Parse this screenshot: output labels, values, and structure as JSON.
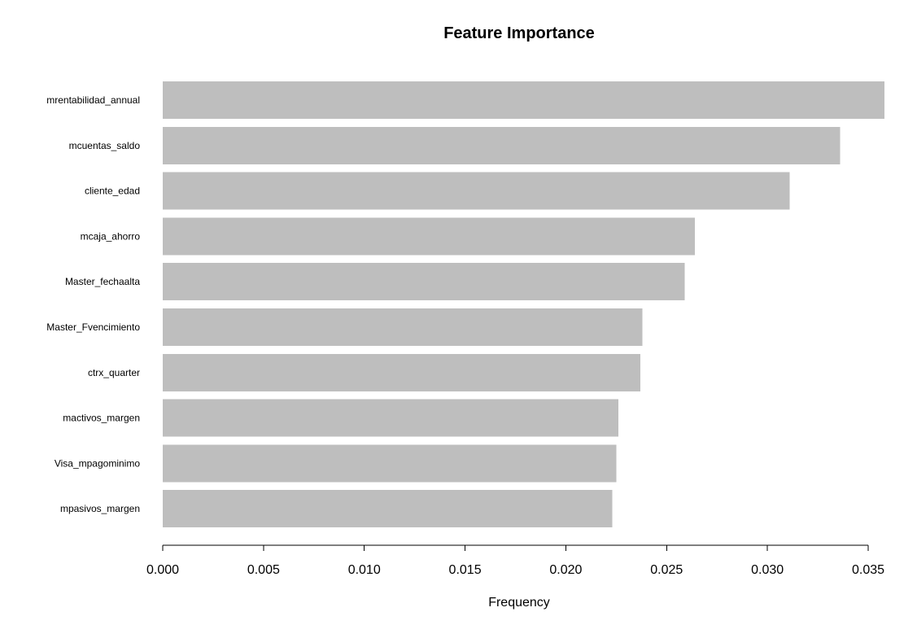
{
  "chart_data": {
    "type": "bar",
    "orientation": "horizontal",
    "title": "Feature Importance",
    "xlabel": "Frequency",
    "ylabel": "",
    "categories": [
      "mrentabilidad_annual",
      "mcuentas_saldo",
      "cliente_edad",
      "mcaja_ahorro",
      "Master_fechaalta",
      "Master_Fvencimiento",
      "ctrx_quarter",
      "mactivos_margen",
      "Visa_mpagominimo",
      "mpasivos_margen"
    ],
    "values": [
      0.0358,
      0.0336,
      0.0311,
      0.0264,
      0.0259,
      0.0238,
      0.0237,
      0.0226,
      0.0225,
      0.0223
    ],
    "xlim": [
      0,
      0.035
    ],
    "xticks": [
      0.0,
      0.005,
      0.01,
      0.015,
      0.02,
      0.025,
      0.03,
      0.035
    ],
    "xtick_labels": [
      "0.000",
      "0.005",
      "0.010",
      "0.015",
      "0.020",
      "0.025",
      "0.030",
      "0.035"
    ],
    "bar_color": "#bebebe",
    "grid": false,
    "legend": "none"
  }
}
